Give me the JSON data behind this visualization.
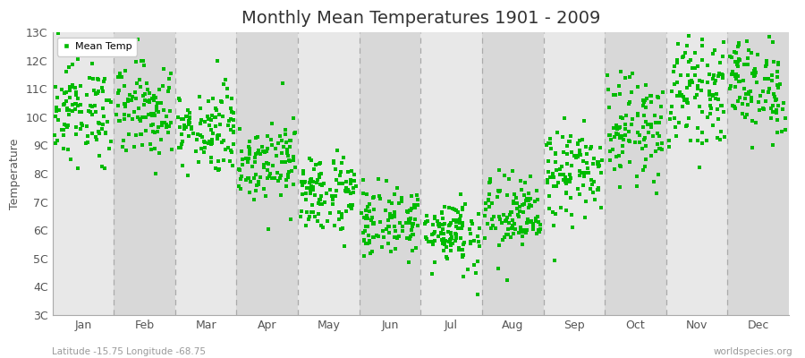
{
  "title": "Monthly Mean Temperatures 1901 - 2009",
  "ylabel": "Temperature",
  "xlabel_labels": [
    "Jan",
    "Feb",
    "Mar",
    "Apr",
    "May",
    "Jun",
    "Jul",
    "Aug",
    "Sep",
    "Oct",
    "Nov",
    "Dec"
  ],
  "ytick_labels": [
    "3C",
    "4C",
    "5C",
    "6C",
    "7C",
    "8C",
    "9C",
    "10C",
    "11C",
    "12C",
    "13C"
  ],
  "ytick_values": [
    3,
    4,
    5,
    6,
    7,
    8,
    9,
    10,
    11,
    12,
    13
  ],
  "ylim": [
    3,
    13
  ],
  "dot_color": "#00bb00",
  "dot_size": 5,
  "legend_label": "Mean Temp",
  "footer_left": "Latitude -15.75 Longitude -68.75",
  "footer_right": "worldspecies.org",
  "title_fontsize": 14,
  "axis_fontsize": 9,
  "tick_color": "#555555",
  "bg_color": "#ffffff",
  "plot_bg_color_even": "#e8e8e8",
  "plot_bg_color_odd": "#d8d8d8",
  "vline_color": "#aaaaaa",
  "spine_color": "#aaaaaa",
  "footer_color": "#999999",
  "monthly_means": [
    10.2,
    10.3,
    9.6,
    8.5,
    7.3,
    6.3,
    5.95,
    6.5,
    8.0,
    9.6,
    10.9,
    11.1
  ],
  "monthly_stds": [
    0.85,
    0.85,
    0.75,
    0.7,
    0.72,
    0.62,
    0.65,
    0.72,
    0.82,
    0.9,
    0.88,
    0.88
  ],
  "n_years": 109,
  "start_year": 1901,
  "end_year": 2009
}
